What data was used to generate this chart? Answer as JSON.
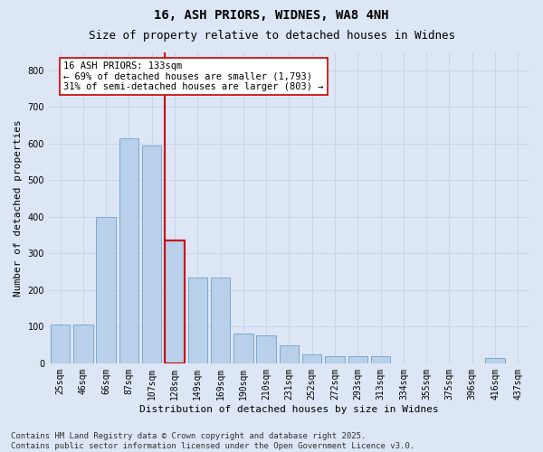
{
  "title_line1": "16, ASH PRIORS, WIDNES, WA8 4NH",
  "title_line2": "Size of property relative to detached houses in Widnes",
  "xlabel": "Distribution of detached houses by size in Widnes",
  "ylabel": "Number of detached properties",
  "bins": [
    "25sqm",
    "46sqm",
    "66sqm",
    "87sqm",
    "107sqm",
    "128sqm",
    "149sqm",
    "169sqm",
    "190sqm",
    "210sqm",
    "231sqm",
    "252sqm",
    "272sqm",
    "293sqm",
    "313sqm",
    "334sqm",
    "355sqm",
    "375sqm",
    "396sqm",
    "416sqm",
    "437sqm"
  ],
  "values": [
    105,
    105,
    400,
    615,
    595,
    335,
    235,
    235,
    80,
    75,
    50,
    25,
    20,
    20,
    20,
    0,
    0,
    0,
    0,
    15,
    0
  ],
  "bar_color": "#b8d0ea",
  "bar_edge_color": "#7aa8d0",
  "highlight_bin_index": 5,
  "highlight_bar_edge_color": "#cc0000",
  "vline_color": "#cc0000",
  "annotation_text": "16 ASH PRIORS: 133sqm\n← 69% of detached houses are smaller (1,793)\n31% of semi-detached houses are larger (803) →",
  "annotation_box_color": "#ffffff",
  "annotation_box_edge_color": "#cc0000",
  "ylim": [
    0,
    850
  ],
  "yticks": [
    0,
    100,
    200,
    300,
    400,
    500,
    600,
    700,
    800
  ],
  "grid_color": "#c8d4e8",
  "bg_color": "#dce6f5",
  "plot_bg_color": "#dce6f5",
  "footnote": "Contains HM Land Registry data © Crown copyright and database right 2025.\nContains public sector information licensed under the Open Government Licence v3.0.",
  "title_fontsize": 10,
  "subtitle_fontsize": 9,
  "axis_label_fontsize": 8,
  "tick_fontsize": 7,
  "annotation_fontsize": 7.5,
  "footnote_fontsize": 6.5
}
